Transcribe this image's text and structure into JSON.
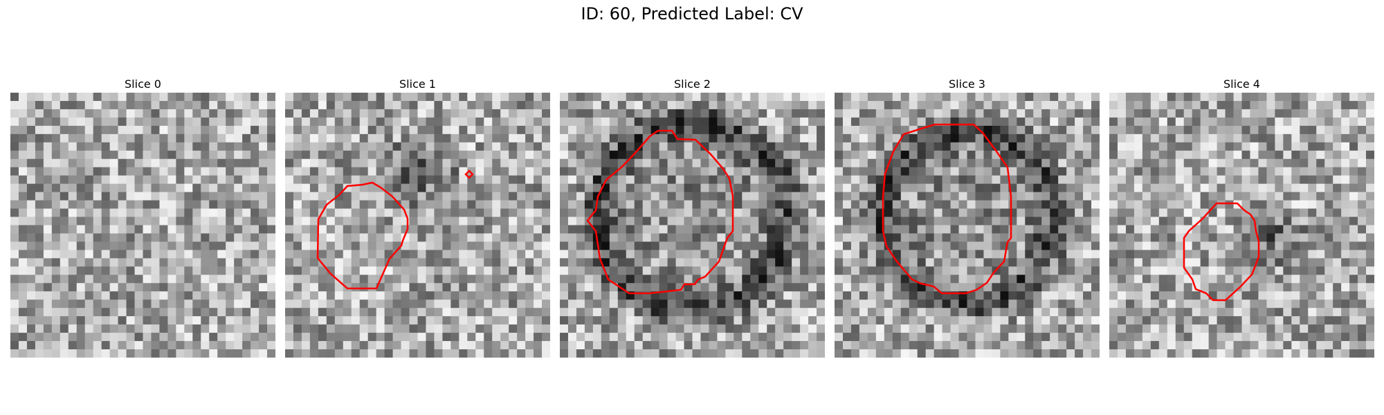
{
  "figure": {
    "title": "ID: 60, Predicted Label: CV"
  },
  "panels": [
    {
      "title": "Slice 0",
      "seed": 11,
      "contours": []
    },
    {
      "title": "Slice 1",
      "seed": 23,
      "contours": [
        "main-contour",
        "small-contour"
      ]
    },
    {
      "title": "Slice 2",
      "seed": 37,
      "contours": [
        "main-contour"
      ]
    },
    {
      "title": "Slice 3",
      "seed": 41,
      "contours": [
        "main-contour"
      ]
    },
    {
      "title": "Slice 4",
      "seed": 53,
      "contours": [
        "main-contour"
      ]
    }
  ],
  "colors": {
    "contour": "#ff0000"
  }
}
